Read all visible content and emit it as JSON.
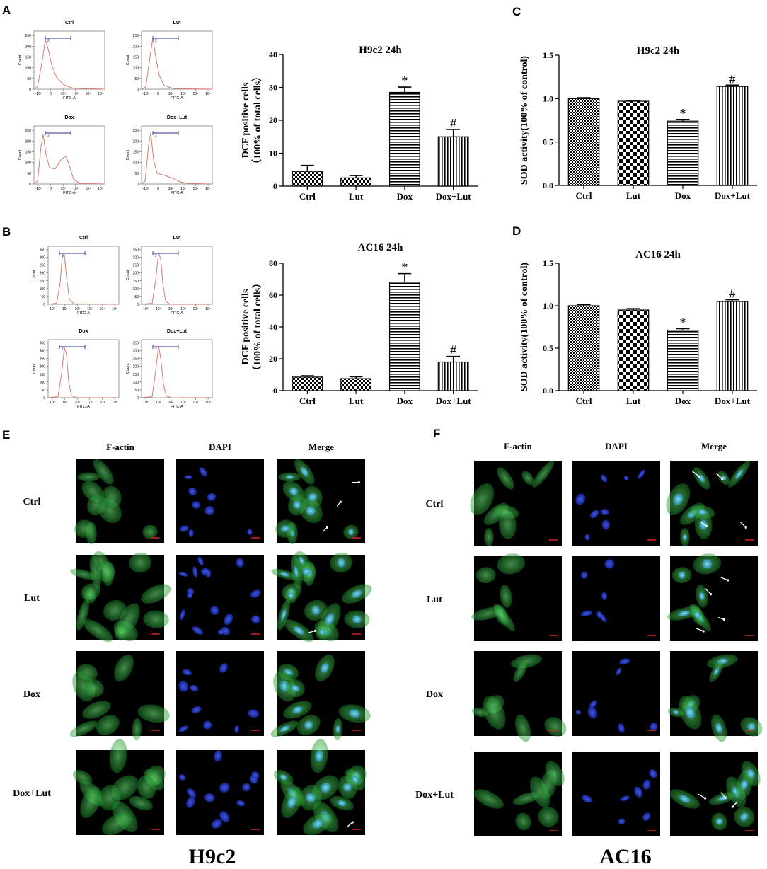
{
  "panels": {
    "A": "A",
    "B": "B",
    "C": "C",
    "D": "D",
    "E": "E",
    "F": "F"
  },
  "flow_A": {
    "titles": [
      "Ctrl",
      "Lut",
      "Dox",
      "Dox+Lut"
    ],
    "gate": "2",
    "xlabel": "FITC-A",
    "ylabel": "Count",
    "yticks": [
      "0",
      "50",
      "100",
      "150",
      "200",
      "250"
    ],
    "xticks": [
      "-10²",
      "0",
      "10²",
      "10³",
      "10⁴",
      "10⁵"
    ]
  },
  "flow_B": {
    "titles": [
      "Ctrl",
      "Lut",
      "Dox",
      "Dox+Lut"
    ],
    "gate": "2",
    "xlabel": "FITC-A",
    "ylabel": "Count",
    "yticks": [
      "0",
      "50",
      "100",
      "150",
      "200",
      "250",
      "300",
      "350"
    ],
    "xticks": [
      "10⁰",
      "10¹",
      "10²",
      "10³",
      "10⁴",
      "10⁵"
    ]
  },
  "chart_data": [
    {
      "panel": "A",
      "type": "bar",
      "title": "H9c2   24h",
      "categories": [
        "Ctrl",
        "Lut",
        "Dox",
        "Dox+Lut"
      ],
      "values": [
        4.5,
        2.5,
        28.5,
        15
      ],
      "errors": [
        1.8,
        0.7,
        1.6,
        2.2
      ],
      "significance": [
        "",
        "",
        "*",
        "#"
      ],
      "ylabel": "DCF positive cells\n（100% of total cells）",
      "ylim": [
        0,
        40
      ],
      "yticks": [
        0,
        10,
        20,
        30,
        40
      ],
      "patterns": [
        "checker-fine",
        "checker-fine",
        "hlines",
        "vlines"
      ]
    },
    {
      "panel": "B",
      "type": "bar",
      "title": "AC16   24h",
      "categories": [
        "Ctrl",
        "Lut",
        "Dox",
        "Dox+Lut"
      ],
      "values": [
        8.5,
        7.5,
        68,
        18
      ],
      "errors": [
        0.8,
        1.2,
        5.5,
        3.5
      ],
      "significance": [
        "",
        "",
        "*",
        "#"
      ],
      "ylabel": "DCF positive cells\n（100% of total cells）",
      "ylim": [
        0,
        80
      ],
      "yticks": [
        0,
        20,
        40,
        60,
        80
      ],
      "patterns": [
        "checker-fine",
        "checker-fine",
        "hlines",
        "vlines"
      ]
    },
    {
      "panel": "C",
      "type": "bar",
      "title": "H9c2   24h",
      "categories": [
        "Ctrl",
        "Lut",
        "Dox",
        "Dox+Lut"
      ],
      "values": [
        1.0,
        0.97,
        0.74,
        1.14
      ],
      "errors": [
        0.01,
        0.01,
        0.02,
        0.015
      ],
      "significance": [
        "",
        "",
        "*",
        "#"
      ],
      "ylabel": "SOD activity(100% of control)",
      "ylim": [
        0,
        1.5
      ],
      "yticks": [
        "0.0",
        "0.5",
        "1.0",
        "1.5"
      ],
      "patterns": [
        "dots",
        "checker-big",
        "hlines",
        "vlines"
      ]
    },
    {
      "panel": "D",
      "type": "bar",
      "title": "AC16   24h",
      "categories": [
        "Ctrl",
        "Lut",
        "Dox",
        "Dox+Lut"
      ],
      "values": [
        1.0,
        0.95,
        0.71,
        1.05
      ],
      "errors": [
        0.015,
        0.015,
        0.02,
        0.02
      ],
      "significance": [
        "",
        "",
        "*",
        "#"
      ],
      "ylabel": "SOD activity(100% of control)",
      "ylim": [
        0,
        1.5
      ],
      "yticks": [
        "0.0",
        "0.5",
        "1.0",
        "1.5"
      ],
      "patterns": [
        "dots",
        "checker-big",
        "hlines",
        "vlines"
      ]
    }
  ],
  "micro_E": {
    "columns": [
      "F-actin",
      "DAPI",
      "Merge"
    ],
    "rows": [
      "Ctrl",
      "Lut",
      "Dox",
      "Dox+Lut"
    ],
    "cell_line": "H9c2"
  },
  "micro_F": {
    "columns": [
      "F-actin",
      "DAPI",
      "Merge"
    ],
    "rows": [
      "Ctrl",
      "Lut",
      "Dox",
      "Dox+Lut"
    ],
    "cell_line": "AC16"
  },
  "colors": {
    "histogram": "#d97b6c",
    "gate": "#2b2b8f",
    "green": "#39c24a",
    "blue": "#2a3fe0",
    "cyan": "#37b8d8",
    "scalebar": "#d22"
  }
}
